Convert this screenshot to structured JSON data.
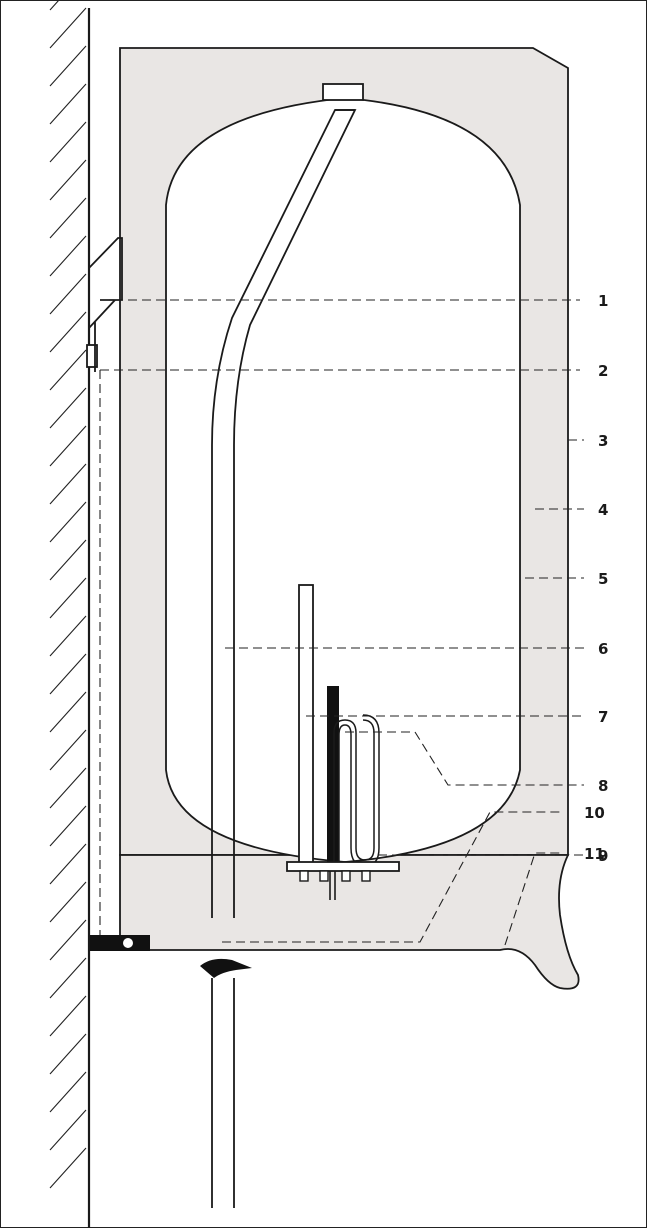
{
  "colors": {
    "casing": "#e9e6e4",
    "tank": "#ffffff",
    "line": "#1a1a1a",
    "anode": "#111111"
  },
  "callouts": [
    {
      "id": "callout-1",
      "label": "1"
    },
    {
      "id": "callout-2",
      "label": "2"
    },
    {
      "id": "callout-3",
      "label": "3"
    },
    {
      "id": "callout-4",
      "label": "4"
    },
    {
      "id": "callout-5",
      "label": "5"
    },
    {
      "id": "callout-6",
      "label": "6"
    },
    {
      "id": "callout-7",
      "label": "7"
    },
    {
      "id": "callout-8",
      "label": "8"
    },
    {
      "id": "callout-9",
      "label": "9"
    },
    {
      "id": "callout-10",
      "label": "10"
    },
    {
      "id": "callout-11",
      "label": "11"
    }
  ]
}
